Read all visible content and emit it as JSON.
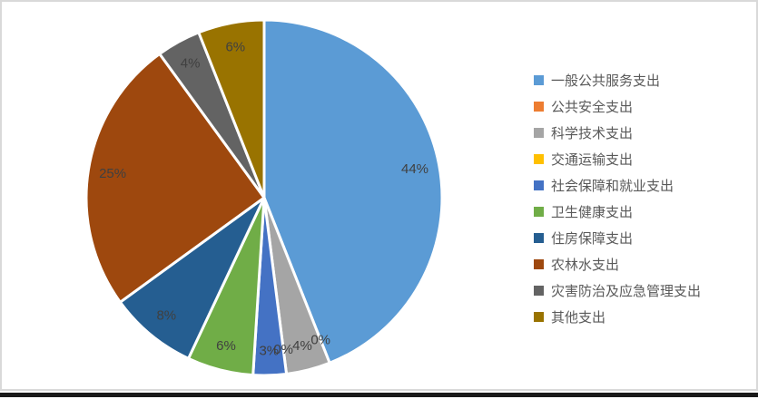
{
  "chart_data": {
    "type": "pie",
    "title": "",
    "categories": [
      "一般公共服务支出",
      "公共安全支出",
      "科学技术支出",
      "交通运输支出",
      "社会保障和就业支出",
      "卫生健康支出",
      "住房保障支出",
      "农林水支出",
      "灾害防治及应急管理支出",
      "其他支出"
    ],
    "values": [
      44,
      0,
      4,
      0,
      3,
      6,
      8,
      25,
      4,
      6
    ],
    "labels": [
      "44%",
      "0%",
      "4%",
      "0%",
      "3%",
      "6%",
      "8%",
      "25%",
      "4%",
      "6%"
    ],
    "colors": [
      "#5B9BD5",
      "#ED7D31",
      "#A5A5A5",
      "#FFC000",
      "#4472C4",
      "#70AD47",
      "#255E91",
      "#9E480E",
      "#636363",
      "#997300"
    ],
    "start_angle_deg": 0,
    "direction": "clockwise",
    "legend_position": "right",
    "slice_border_color": "#FFFFFF",
    "label_color": "#404040",
    "legend_text_color": "#595959",
    "frame_border_color": "#D9D9D9",
    "bottom_bar_color": "#1A1A1A"
  }
}
